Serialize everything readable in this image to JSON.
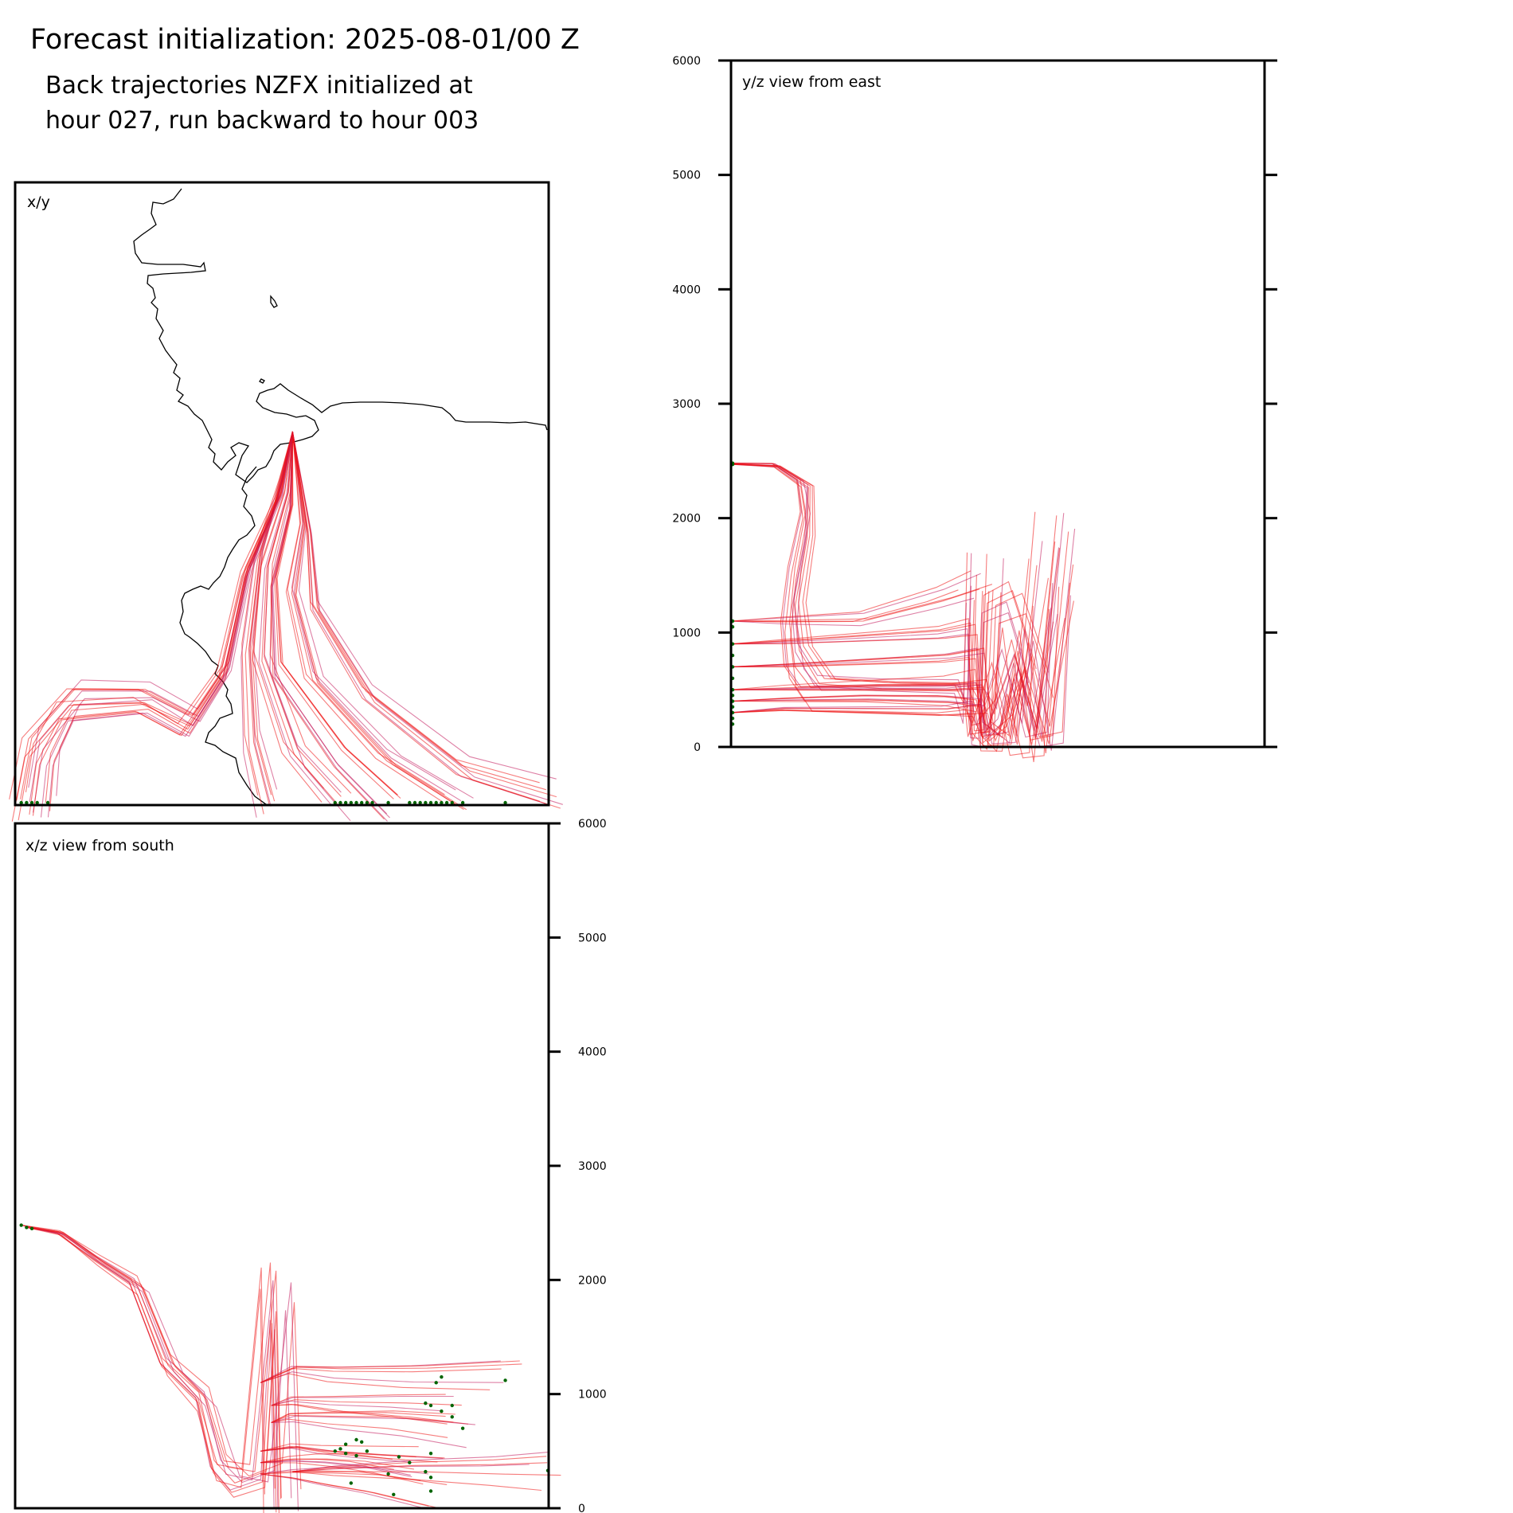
{
  "title": {
    "main": "Forecast initialization: 2025-08-01/00 Z",
    "sub_line1": "Back trajectories NZFX initialized at",
    "sub_line2": "hour 027, run backward to hour 003"
  },
  "colors": {
    "trajectory": "#ee1111",
    "trajectory_dark": "#c2185b",
    "endpoint": "#006400",
    "coast": "#000000",
    "axes": "#000000"
  },
  "chart_data": [
    {
      "type": "line",
      "panel": "x/y",
      "label": "x/y",
      "grid": false,
      "description_of_marks": "map view with coastline and back-trajectory lines",
      "trajectories": [
        {
          "points": [
            [
              0.52,
              0.4
            ],
            [
              0.5,
              0.48
            ],
            [
              0.46,
              0.6
            ],
            [
              0.44,
              0.75
            ],
            [
              0.45,
              0.9
            ],
            [
              0.48,
              1.0
            ]
          ]
        },
        {
          "points": [
            [
              0.52,
              0.4
            ],
            [
              0.51,
              0.5
            ],
            [
              0.47,
              0.62
            ],
            [
              0.46,
              0.77
            ],
            [
              0.52,
              0.92
            ],
            [
              0.6,
              1.0
            ]
          ]
        },
        {
          "points": [
            [
              0.52,
              0.4
            ],
            [
              0.52,
              0.52
            ],
            [
              0.49,
              0.64
            ],
            [
              0.5,
              0.78
            ],
            [
              0.62,
              0.92
            ],
            [
              0.72,
              1.0
            ]
          ]
        },
        {
          "points": [
            [
              0.52,
              0.4
            ],
            [
              0.54,
              0.55
            ],
            [
              0.52,
              0.66
            ],
            [
              0.56,
              0.8
            ],
            [
              0.7,
              0.93
            ],
            [
              0.83,
              1.0
            ]
          ]
        },
        {
          "points": [
            [
              0.52,
              0.4
            ],
            [
              0.55,
              0.56
            ],
            [
              0.56,
              0.68
            ],
            [
              0.66,
              0.82
            ],
            [
              0.84,
              0.94
            ],
            [
              1.0,
              0.98
            ]
          ]
        },
        {
          "points": [
            [
              0.52,
              0.4
            ],
            [
              0.5,
              0.5
            ],
            [
              0.44,
              0.62
            ],
            [
              0.4,
              0.78
            ],
            [
              0.34,
              0.86
            ],
            [
              0.25,
              0.82
            ],
            [
              0.12,
              0.82
            ],
            [
              0.04,
              0.9
            ],
            [
              0.02,
              1.0
            ]
          ]
        },
        {
          "points": [
            [
              0.52,
              0.4
            ],
            [
              0.49,
              0.51
            ],
            [
              0.43,
              0.63
            ],
            [
              0.39,
              0.79
            ],
            [
              0.32,
              0.88
            ],
            [
              0.24,
              0.84
            ],
            [
              0.1,
              0.85
            ],
            [
              0.06,
              0.92
            ],
            [
              0.05,
              1.0
            ]
          ]
        }
      ],
      "endpoints_x": [
        0.01,
        0.02,
        0.03,
        0.04,
        0.06,
        0.6,
        0.61,
        0.62,
        0.63,
        0.64,
        0.65,
        0.66,
        0.67,
        0.7,
        0.74,
        0.75,
        0.76,
        0.77,
        0.78,
        0.79,
        0.8,
        0.81,
        0.82,
        0.84,
        0.92
      ]
    },
    {
      "type": "line",
      "panel": "y/z",
      "label": "y/z view from east",
      "ylim": [
        0,
        6000
      ],
      "yticks": [
        "0",
        "1000",
        "2000",
        "3000",
        "4000",
        "5000",
        "6000"
      ],
      "grid": false,
      "trajectories": [
        {
          "points": [
            [
              0.0,
              2480
            ],
            [
              0.08,
              2460
            ],
            [
              0.13,
              2300
            ],
            [
              0.14,
              2000
            ],
            [
              0.12,
              1500
            ],
            [
              0.11,
              1000
            ],
            [
              0.12,
              600
            ],
            [
              0.15,
              400
            ],
            [
              0.3,
              400
            ],
            [
              0.45,
              380
            ],
            [
              0.47,
              200
            ],
            [
              0.48,
              1500
            ]
          ]
        },
        {
          "points": [
            [
              0.0,
              2470
            ],
            [
              0.09,
              2440
            ],
            [
              0.15,
              2250
            ],
            [
              0.15,
              1800
            ],
            [
              0.13,
              1200
            ],
            [
              0.14,
              800
            ],
            [
              0.18,
              500
            ],
            [
              0.3,
              450
            ],
            [
              0.45,
              420
            ],
            [
              0.47,
              150
            ],
            [
              0.48,
              1200
            ]
          ]
        },
        {
          "points": [
            [
              0.0,
              1100
            ],
            [
              0.1,
              1120
            ],
            [
              0.25,
              1150
            ],
            [
              0.4,
              1350
            ],
            [
              0.47,
              1480
            ]
          ]
        },
        {
          "points": [
            [
              0.0,
              900
            ],
            [
              0.1,
              920
            ],
            [
              0.25,
              960
            ],
            [
              0.4,
              1000
            ],
            [
              0.46,
              1050
            ],
            [
              0.47,
              100
            ],
            [
              0.49,
              100
            ],
            [
              0.5,
              1200
            ],
            [
              0.55,
              1300
            ],
            [
              0.58,
              900
            ],
            [
              0.6,
              600
            ]
          ]
        },
        {
          "points": [
            [
              0.0,
              700
            ],
            [
              0.1,
              720
            ],
            [
              0.25,
              760
            ],
            [
              0.4,
              800
            ],
            [
              0.46,
              850
            ],
            [
              0.47,
              200
            ],
            [
              0.5,
              80
            ],
            [
              0.52,
              600
            ],
            [
              0.55,
              60
            ],
            [
              0.59,
              100
            ],
            [
              0.6,
              1400
            ]
          ]
        },
        {
          "points": [
            [
              0.0,
              500
            ],
            [
              0.1,
              520
            ],
            [
              0.25,
              540
            ],
            [
              0.4,
              560
            ],
            [
              0.46,
              600
            ],
            [
              0.47,
              150
            ],
            [
              0.5,
              300
            ],
            [
              0.53,
              800
            ],
            [
              0.56,
              200
            ],
            [
              0.6,
              1300
            ]
          ]
        },
        {
          "points": [
            [
              0.0,
              400
            ],
            [
              0.1,
              420
            ],
            [
              0.25,
              440
            ],
            [
              0.4,
              430
            ],
            [
              0.46,
              400
            ],
            [
              0.47,
              80
            ],
            [
              0.51,
              100
            ],
            [
              0.54,
              1000
            ],
            [
              0.57,
              50
            ],
            [
              0.61,
              2000
            ]
          ]
        },
        {
          "points": [
            [
              0.0,
              300
            ],
            [
              0.1,
              320
            ],
            [
              0.25,
              300
            ],
            [
              0.4,
              280
            ],
            [
              0.46,
              300
            ],
            [
              0.47,
              60
            ],
            [
              0.52,
              700
            ],
            [
              0.56,
              30
            ],
            [
              0.6,
              1600
            ]
          ]
        }
      ],
      "endpoints_y": [
        2480,
        2470,
        1100,
        1050,
        900,
        800,
        700,
        600,
        500,
        450,
        400,
        350,
        300,
        250,
        200
      ]
    },
    {
      "type": "line",
      "panel": "x/z",
      "label": "x/z view from south",
      "ylim": [
        0,
        6000
      ],
      "yticks": [
        "0",
        "1000",
        "2000",
        "3000",
        "4000",
        "5000",
        "6000"
      ],
      "grid": false,
      "trajectories": [
        {
          "points": [
            [
              0.01,
              2480
            ],
            [
              0.08,
              2420
            ],
            [
              0.15,
              2200
            ],
            [
              0.22,
              2000
            ],
            [
              0.28,
              1300
            ],
            [
              0.35,
              1000
            ],
            [
              0.38,
              400
            ],
            [
              0.42,
              200
            ],
            [
              0.48,
              300
            ],
            [
              0.5,
              1700
            ],
            [
              0.51,
              50
            ]
          ]
        },
        {
          "points": [
            [
              0.02,
              2460
            ],
            [
              0.09,
              2400
            ],
            [
              0.16,
              2150
            ],
            [
              0.24,
              1900
            ],
            [
              0.3,
              1200
            ],
            [
              0.36,
              900
            ],
            [
              0.4,
              300
            ],
            [
              0.45,
              250
            ],
            [
              0.49,
              2000
            ],
            [
              0.5,
              0
            ]
          ]
        },
        {
          "points": [
            [
              0.46,
              1100
            ],
            [
              0.52,
              1200
            ],
            [
              0.6,
              1150
            ],
            [
              0.75,
              1120
            ],
            [
              0.92,
              1120
            ]
          ]
        },
        {
          "points": [
            [
              0.48,
              900
            ],
            [
              0.52,
              950
            ],
            [
              0.6,
              930
            ],
            [
              0.72,
              920
            ],
            [
              0.82,
              900
            ]
          ]
        },
        {
          "points": [
            [
              0.48,
              750
            ],
            [
              0.52,
              800
            ],
            [
              0.6,
              780
            ],
            [
              0.72,
              760
            ],
            [
              0.84,
              700
            ]
          ]
        },
        {
          "points": [
            [
              0.46,
              500
            ],
            [
              0.52,
              550
            ],
            [
              0.58,
              520
            ],
            [
              0.66,
              500
            ],
            [
              0.77,
              480
            ]
          ]
        },
        {
          "points": [
            [
              0.46,
              400
            ],
            [
              0.52,
              420
            ],
            [
              0.58,
              410
            ],
            [
              0.65,
              380
            ],
            [
              0.74,
              300
            ]
          ]
        },
        {
          "points": [
            [
              0.46,
              300
            ],
            [
              0.52,
              300
            ],
            [
              0.58,
              280
            ],
            [
              0.66,
              250
            ],
            [
              0.78,
              150
            ]
          ]
        },
        {
          "points": [
            [
              0.52,
              320
            ],
            [
              0.6,
              330
            ],
            [
              0.75,
              340
            ],
            [
              0.9,
              330
            ],
            [
              1.0,
              330
            ]
          ]
        }
      ],
      "endpoints": [
        [
          0.01,
          2480
        ],
        [
          0.02,
          2460
        ],
        [
          0.03,
          2450
        ],
        [
          0.92,
          1120
        ],
        [
          0.8,
          1150
        ],
        [
          0.79,
          1100
        ],
        [
          0.77,
          920
        ],
        [
          0.78,
          900
        ],
        [
          0.82,
          900
        ],
        [
          0.8,
          850
        ],
        [
          0.82,
          800
        ],
        [
          0.84,
          700
        ],
        [
          0.64,
          600
        ],
        [
          0.65,
          580
        ],
        [
          0.62,
          560
        ],
        [
          0.61,
          520
        ],
        [
          0.6,
          500
        ],
        [
          0.62,
          480
        ],
        [
          0.64,
          460
        ],
        [
          0.66,
          500
        ],
        [
          0.72,
          450
        ],
        [
          0.74,
          400
        ],
        [
          0.78,
          480
        ],
        [
          0.77,
          320
        ],
        [
          0.78,
          270
        ],
        [
          0.7,
          300
        ],
        [
          0.78,
          150
        ],
        [
          0.63,
          220
        ],
        [
          0.71,
          120
        ],
        [
          1.0,
          330
        ]
      ]
    }
  ]
}
